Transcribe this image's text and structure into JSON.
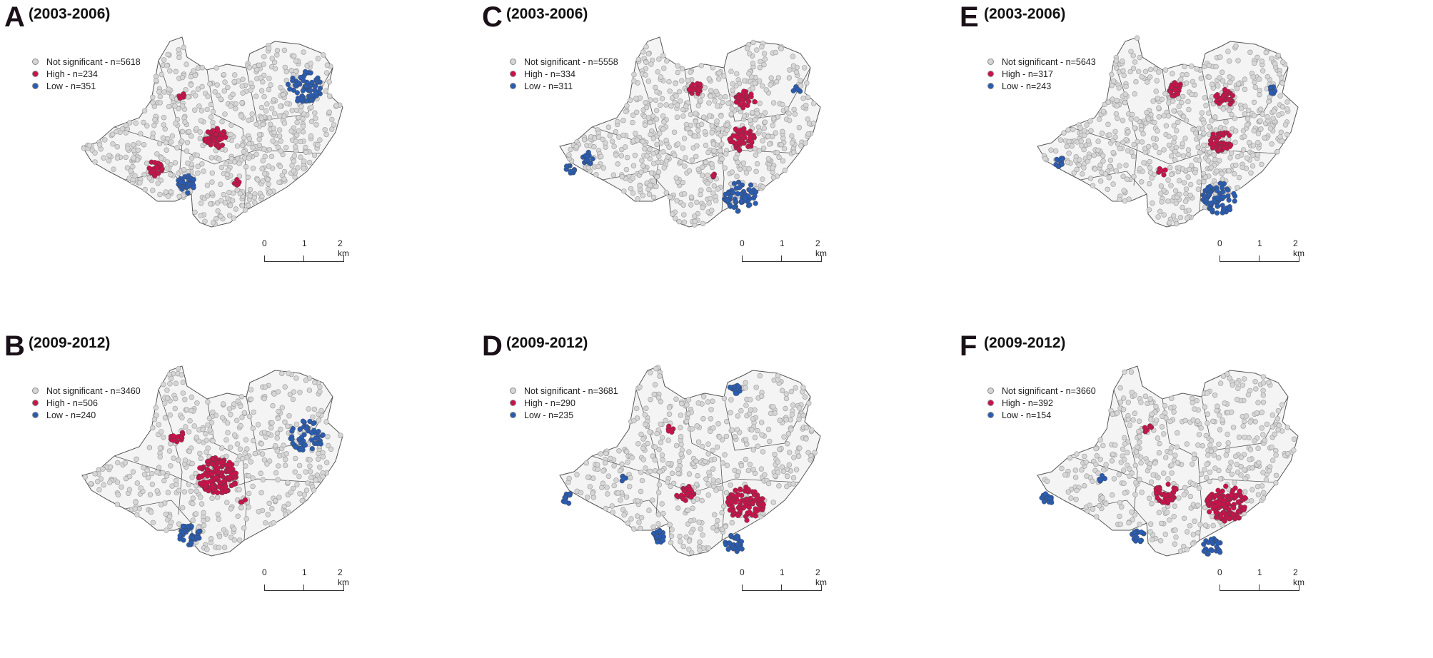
{
  "colors": {
    "not_significant": "#d6d6d6",
    "high": "#c8134a",
    "low": "#2a5cb0",
    "area_fill": "#f4f4f4",
    "boundary": "#555555"
  },
  "scale_bar": {
    "ticks": [
      "0",
      "1",
      "2 km"
    ]
  },
  "panels": [
    {
      "letter": "A",
      "period": "(2003-2006)",
      "legend": [
        "Not significant - n=5618",
        "High - n=234",
        "Low - n=351"
      ]
    },
    {
      "letter": "C",
      "period": "(2003-2006)",
      "legend": [
        "Not significant - n=5558",
        "High - n=334",
        "Low - n=311"
      ]
    },
    {
      "letter": "E",
      "period": "(2003-2006)",
      "legend": [
        "Not significant - n=5643",
        "High - n=317",
        "Low - n=243"
      ]
    },
    {
      "letter": "B",
      "period": "(2009-2012)",
      "legend": [
        "Not significant - n=3460",
        "High - n=506",
        "Low - n=240"
      ]
    },
    {
      "letter": "D",
      "period": "(2009-2012)",
      "legend": [
        "Not significant - n=3681",
        "High - n=290",
        "Low - n=235"
      ]
    },
    {
      "letter": "F",
      "period": "(2009-2012)",
      "legend": [
        "Not significant - n=3660",
        "High - n=392",
        "Low - n=154"
      ]
    }
  ]
}
